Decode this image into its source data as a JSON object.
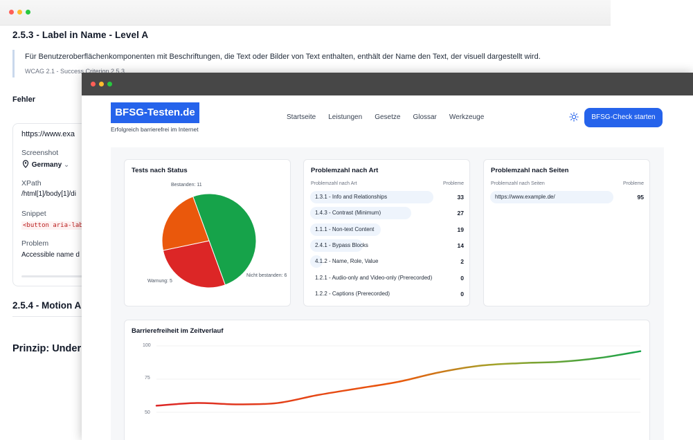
{
  "back": {
    "heading": "2.5.3 - Label in Name - Level A",
    "quote_text": "Für Benutzeroberflächenkomponenten mit Beschriftungen, die Text oder Bilder von Text enthalten, enthält der Name den Text, der visuell dargestellt wird.",
    "quote_ref": "WCAG 2.1 - Success Criterion 2.5.3",
    "errors_label": "Fehler",
    "card": {
      "url": "https://www.exa",
      "screenshot_label": "Screenshot",
      "country": "Germany",
      "xpath_label": "XPath",
      "xpath_value": "/html[1]/body[1]/di",
      "snippet_label": "Snippet",
      "snippet_value": "<button aria-lab",
      "problem_label": "Problem",
      "problem_value": "Accessible name d"
    },
    "heading_254": "2.5.4 - Motion A",
    "heading_principle": "Prinzip: Under"
  },
  "front": {
    "logo": "BFSG-Testen.de",
    "tagline": "Erfolgreich barrierefrei im Internet",
    "nav": [
      "Startseite",
      "Leistungen",
      "Gesetze",
      "Glossar",
      "Werkzeuge"
    ],
    "cta": "BFSG-Check starten",
    "status": {
      "title": "Tests nach Status",
      "slices": [
        {
          "label": "Bestanden: 11",
          "value": 11,
          "color": "#16a34a"
        },
        {
          "label": "Nicht bestanden: 6",
          "value": 6,
          "color": "#dc2626"
        },
        {
          "label": "Warnung: 5",
          "value": 5,
          "color": "#ea580c"
        }
      ]
    },
    "by_type": {
      "title": "Problemzahl nach Art",
      "col1": "Problemzahl nach Art",
      "col2": "Probleme",
      "rows": [
        {
          "label": "1.3.1 - Info and Relationships",
          "value": 33
        },
        {
          "label": "1.4.3 - Contrast (Minimum)",
          "value": 27
        },
        {
          "label": "1.1.1 - Non-text Content",
          "value": 19
        },
        {
          "label": "2.4.1 - Bypass Blocks",
          "value": 14
        },
        {
          "label": "4.1.2 - Name, Role, Value",
          "value": 2
        },
        {
          "label": "1.2.1 - Audio-only and Video-only (Prerecorded)",
          "value": 0
        },
        {
          "label": "1.2.2 - Captions (Prerecorded)",
          "value": 0
        }
      ]
    },
    "by_page": {
      "title": "Problemzahl nach Seiten",
      "col1": "Problemzahl nach Seiten",
      "col2": "Probleme",
      "rows": [
        {
          "label": "https://www.example.de/",
          "value": 95
        }
      ]
    },
    "timeline": {
      "title": "Barrierefreiheit im Zeitverlauf",
      "ylabels": [
        "100",
        "75",
        "50"
      ]
    }
  },
  "chart_data": [
    {
      "type": "pie",
      "title": "Tests nach Status",
      "categories": [
        "Bestanden",
        "Nicht bestanden",
        "Warnung"
      ],
      "values": [
        11,
        6,
        5
      ]
    },
    {
      "type": "line",
      "title": "Barrierefreiheit im Zeitverlauf",
      "ylim": [
        45,
        100
      ],
      "x": [
        0,
        1,
        2,
        3,
        4,
        5,
        6,
        7,
        8,
        9,
        10,
        11,
        12
      ],
      "values": [
        55,
        57,
        56,
        57,
        63,
        68,
        73,
        80,
        85,
        87,
        88,
        91,
        96
      ]
    }
  ]
}
